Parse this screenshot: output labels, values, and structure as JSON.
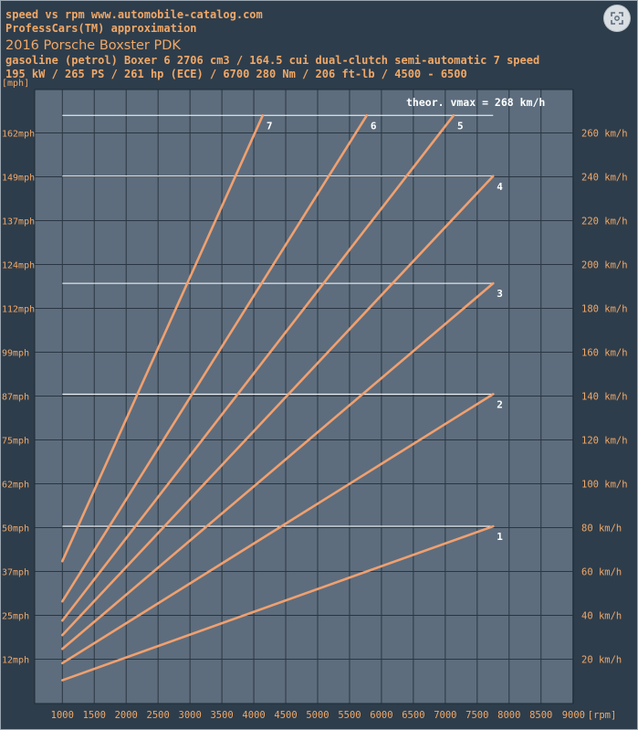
{
  "header": {
    "line1": "speed vs rpm www.automobile-catalog.com",
    "line2": "ProfessCars(TM) approximation",
    "line3": "2016 Porsche Boxster PDK",
    "line4": "gasoline (petrol) Boxer 6 2706 cm3 / 164.5 cui dual-clutch semi-automatic 7 speed",
    "line5": "195 kW / 265 PS / 261 hp  (ECE) / 6700 280 Nm / 206 ft-lb / 4500 - 6500"
  },
  "colors": {
    "plot_bg": "#5d6d7d",
    "line": "#f0a070",
    "text": "#f0a868",
    "grid": "#2a3642",
    "ref": "#ffffff"
  },
  "icons": {
    "corner": "scan-icon"
  },
  "chart_data": {
    "type": "line",
    "ylabel_unit": "[mph]",
    "xunit": "[rpm]",
    "xticks": [
      1000,
      1500,
      2000,
      2500,
      3000,
      3500,
      4000,
      4500,
      5000,
      5500,
      6000,
      6500,
      7000,
      7500,
      8000,
      8500,
      9000
    ],
    "xlim": [
      600,
      9000
    ],
    "ylim": [
      0,
      275
    ],
    "grid": true,
    "yticks_left": [
      {
        "v": 20,
        "label": "12mph"
      },
      {
        "v": 40,
        "label": "25mph"
      },
      {
        "v": 60,
        "label": "37mph"
      },
      {
        "v": 80,
        "label": "50mph"
      },
      {
        "v": 100,
        "label": "62mph"
      },
      {
        "v": 120,
        "label": "75mph"
      },
      {
        "v": 140,
        "label": "87mph"
      },
      {
        "v": 160,
        "label": "99mph"
      },
      {
        "v": 180,
        "label": "112mph"
      },
      {
        "v": 200,
        "label": "124mph"
      },
      {
        "v": 220,
        "label": "137mph"
      },
      {
        "v": 240,
        "label": "149mph"
      },
      {
        "v": 260,
        "label": "162mph"
      }
    ],
    "yticks_right": [
      {
        "v": 20,
        "label": "20 km/h"
      },
      {
        "v": 40,
        "label": "40 km/h"
      },
      {
        "v": 60,
        "label": "60 km/h"
      },
      {
        "v": 80,
        "label": "80 km/h"
      },
      {
        "v": 100,
        "label": "100 km/h"
      },
      {
        "v": 120,
        "label": "120 km/h"
      },
      {
        "v": 140,
        "label": "140 km/h"
      },
      {
        "v": 160,
        "label": "160 km/h"
      },
      {
        "v": 180,
        "label": "180 km/h"
      },
      {
        "v": 200,
        "label": "200 km/h"
      },
      {
        "v": 220,
        "label": "220 km/h"
      },
      {
        "v": 240,
        "label": "240 km/h"
      },
      {
        "v": 260,
        "label": "260 km/h"
      }
    ],
    "vmax_label": "theor. vmax = 268 km/h",
    "vmax": 268,
    "series": [
      {
        "name": "1",
        "x": [
          1000,
          7750
        ],
        "y": [
          10.4,
          80.6
        ]
      },
      {
        "name": "2",
        "x": [
          1000,
          7750
        ],
        "y": [
          18.2,
          140.9
        ]
      },
      {
        "name": "3",
        "x": [
          1000,
          7750
        ],
        "y": [
          24.7,
          191.4
        ]
      },
      {
        "name": "4",
        "x": [
          1000,
          7750
        ],
        "y": [
          31.0,
          240.3
        ]
      },
      {
        "name": "5",
        "x": [
          1000,
          7130
        ],
        "y": [
          37.6,
          268
        ]
      },
      {
        "name": "6",
        "x": [
          1000,
          5770
        ],
        "y": [
          46.4,
          268
        ]
      },
      {
        "name": "7",
        "x": [
          1000,
          4140
        ],
        "y": [
          64.7,
          268
        ]
      }
    ],
    "shift_lines": [
      {
        "y": 80.6,
        "x_end": 7750
      },
      {
        "y": 140.9,
        "x_end": 7750
      },
      {
        "y": 191.4,
        "x_end": 7750
      },
      {
        "y": 240.3,
        "x_end": 7750
      },
      {
        "y": 268,
        "x_end": 7750
      }
    ]
  }
}
